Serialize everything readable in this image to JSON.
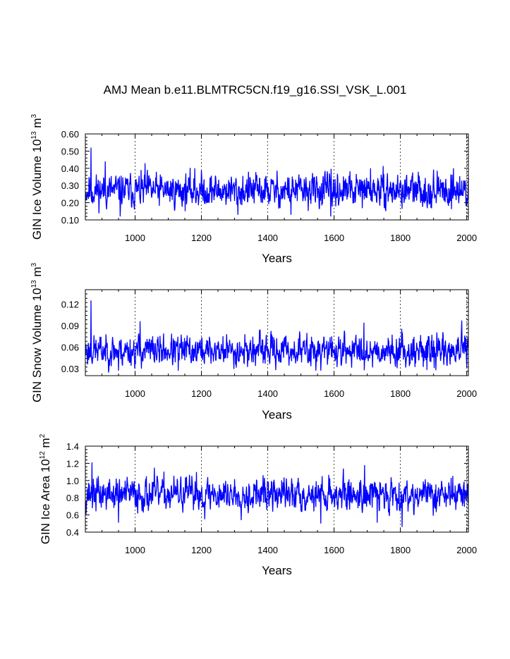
{
  "title": "AMJ Mean b.e11.BLMTRC5CN.f19_g16.SSI_VSK_L.001",
  "chart_data": [
    {
      "type": "line",
      "title": "AMJ Mean b.e11.BLMTRC5CN.f19_g16.SSI_VSK_L.001",
      "xlabel": "Years",
      "ylabel_main": "GIN Ice Volume 10",
      "ylabel_sup1": "13",
      "ylabel_mid": " m",
      "ylabel_sup2": "3",
      "xlim": [
        850,
        2005
      ],
      "ylim": [
        0.1,
        0.6
      ],
      "xticks": [
        1000,
        1200,
        1400,
        1600,
        1800,
        2000
      ],
      "yticks": [
        0.1,
        0.2,
        0.3,
        0.4,
        0.5,
        0.6
      ],
      "ytick_labels": [
        "0.10",
        "0.20",
        "0.30",
        "0.40",
        "0.50",
        "0.60"
      ],
      "grid": "vertical dashed at x ticks",
      "color": "#0000ff",
      "series": [
        {
          "seed": 11,
          "mean": 0.27,
          "amp": 0.045,
          "spikes": [
            [
              867,
              0.52
            ],
            [
              910,
              0.44
            ],
            [
              1030,
              0.43
            ],
            [
              1180,
              0.4
            ],
            [
              1710,
              0.4
            ],
            [
              1960,
              0.4
            ],
            [
              955,
              0.12
            ],
            [
              1310,
              0.13
            ],
            [
              1470,
              0.13
            ],
            [
              1590,
              0.12
            ]
          ]
        }
      ]
    },
    {
      "type": "line",
      "xlabel": "Years",
      "ylabel_main": "GIN Snow Volume 10",
      "ylabel_sup1": "13",
      "ylabel_mid": " m",
      "ylabel_sup2": "3",
      "xlim": [
        850,
        2005
      ],
      "ylim": [
        0.02,
        0.14
      ],
      "xticks": [
        1000,
        1200,
        1400,
        1600,
        1800,
        2000
      ],
      "yticks": [
        0.03,
        0.06,
        0.09,
        0.12
      ],
      "ytick_labels": [
        "0.03",
        "0.06",
        "0.09",
        "0.12"
      ],
      "grid": "vertical dashed at x ticks",
      "color": "#0000ff",
      "series": [
        {
          "seed": 23,
          "mean": 0.055,
          "amp": 0.01,
          "spikes": [
            [
              867,
              0.125
            ],
            [
              1015,
              0.096
            ],
            [
              1690,
              0.094
            ],
            [
              1985,
              0.097
            ],
            [
              950,
              0.027
            ],
            [
              1130,
              0.027
            ],
            [
              1560,
              0.027
            ],
            [
              1880,
              0.028
            ]
          ]
        }
      ]
    },
    {
      "type": "line",
      "xlabel": "Years",
      "ylabel_main": "GIN Ice Area 10",
      "ylabel_sup1": "12",
      "ylabel_mid": " m",
      "ylabel_sup2": "2",
      "xlim": [
        850,
        2005
      ],
      "ylim": [
        0.4,
        1.4
      ],
      "xticks": [
        1000,
        1200,
        1400,
        1600,
        1800,
        2000
      ],
      "yticks": [
        0.4,
        0.6,
        0.8,
        1.0,
        1.2,
        1.4
      ],
      "ytick_labels": [
        "0.4",
        "0.6",
        "0.8",
        "1.0",
        "1.2",
        "1.4"
      ],
      "grid": "vertical dashed at x ticks",
      "color": "#0000ff",
      "series": [
        {
          "seed": 37,
          "mean": 0.84,
          "amp": 0.09,
          "spikes": [
            [
              870,
              1.21
            ],
            [
              1058,
              1.15
            ],
            [
              1185,
              1.1
            ],
            [
              1692,
              1.18
            ],
            [
              1805,
              0.46
            ],
            [
              950,
              0.51
            ],
            [
              1560,
              0.5
            ],
            [
              1730,
              0.51
            ],
            [
              1210,
              0.55
            ]
          ]
        }
      ]
    }
  ]
}
